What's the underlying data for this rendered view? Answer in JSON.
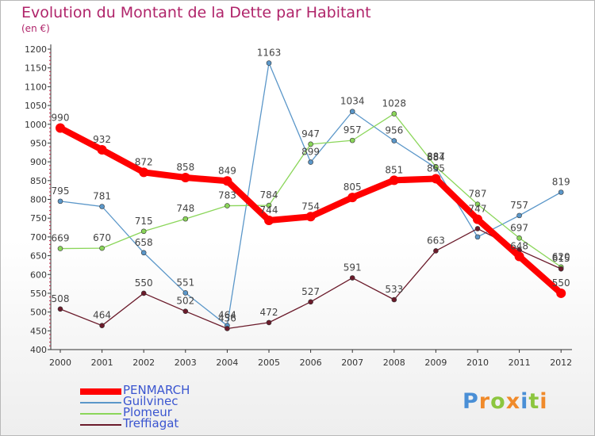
{
  "header": {
    "title": "Evolution du Montant de la Dette par Habitant",
    "subtitle": "(en €)"
  },
  "chart_data": {
    "type": "line",
    "title": "Evolution du Montant de la Dette par Habitant",
    "subtitle": "(en €)",
    "x": [
      "2000",
      "2001",
      "2002",
      "2003",
      "2004",
      "2005",
      "2006",
      "2007",
      "2008",
      "2009",
      "2010",
      "2011",
      "2012"
    ],
    "ylim": [
      400,
      1200
    ],
    "yticks": [
      400,
      450,
      500,
      550,
      600,
      650,
      700,
      750,
      800,
      850,
      900,
      950,
      1000,
      1050,
      1100,
      1150,
      1200
    ],
    "grid": false,
    "legend_position": "bottom-left",
    "series": [
      {
        "name": "Guilvinec",
        "color": "#5b97c9",
        "values": [
          795,
          781,
          658,
          551,
          464,
          1163,
          899,
          1034,
          956,
          884,
          700,
          757,
          819
        ],
        "labels": [
          "795",
          "781",
          "658",
          "551",
          "464",
          "1163",
          "899",
          "1034",
          "956",
          "884",
          "",
          "757",
          "819"
        ]
      },
      {
        "name": "Plomeur",
        "color": "#8bd65a",
        "values": [
          669,
          670,
          715,
          748,
          783,
          784,
          947,
          957,
          1028,
          887,
          787,
          697,
          620
        ],
        "labels": [
          "669",
          "670",
          "715",
          "748",
          "783",
          "784",
          "947",
          "957",
          "1028",
          "887",
          "787",
          "697",
          "620"
        ]
      },
      {
        "name": "Treffiagat",
        "color": "#6b1b2b",
        "values": [
          508,
          464,
          550,
          502,
          456,
          472,
          527,
          591,
          533,
          663,
          722,
          665,
          615
        ],
        "labels": [
          "508",
          "464",
          "550",
          "502",
          "456",
          "472",
          "527",
          "591",
          "533",
          "663",
          "",
          "",
          "615"
        ]
      },
      {
        "name": "PENMARCH",
        "color": "#ff0000",
        "values": [
          990,
          932,
          872,
          858,
          849,
          744,
          754,
          805,
          851,
          855,
          747,
          648,
          550
        ],
        "labels": [
          "990",
          "932",
          "872",
          "858",
          "849",
          "744",
          "754",
          "805",
          "851",
          "855",
          "747",
          "648",
          "550"
        ]
      }
    ]
  },
  "legend": {
    "items": [
      {
        "name": "PENMARCH",
        "color": "#ff0000"
      },
      {
        "name": "Guilvinec",
        "color": "#5b97c9"
      },
      {
        "name": "Plomeur",
        "color": "#8bd65a"
      },
      {
        "name": "Treffiagat",
        "color": "#6b1b2b"
      }
    ]
  },
  "logo": {
    "text": "Proxiti",
    "letter_colors": [
      "#4a8fd6",
      "#f08a2a",
      "#8cc63f",
      "#f08a2a",
      "#4a8fd6",
      "#8cc63f",
      "#f08a2a"
    ]
  }
}
